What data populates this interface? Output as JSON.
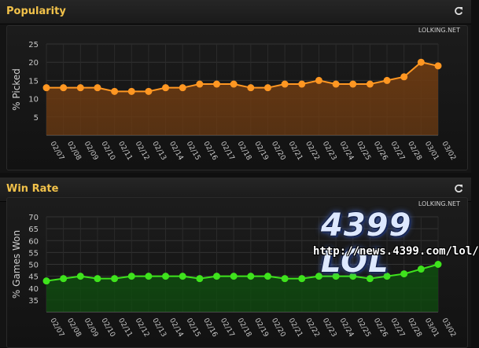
{
  "colors": {
    "title": "#f2c24a",
    "popularity_line": "#ff9722",
    "popularity_fill": "#6b3a12",
    "winrate_line": "#3fe31d",
    "winrate_fill": "#0f4a0f"
  },
  "panels": [
    {
      "title": "Popularity",
      "icon": "refresh-icon"
    },
    {
      "title": "Win Rate",
      "icon": "refresh-icon"
    }
  ],
  "watermark": {
    "logo": "4399 LOL",
    "url": "http://news.4399.com/lol/"
  },
  "chart_data": [
    {
      "type": "area",
      "title": "Popularity",
      "credit": "LOLKING.NET",
      "ylabel": "% Picked",
      "xlabel": "",
      "ylim": [
        0,
        25
      ],
      "yticks": [
        5,
        10,
        15,
        20,
        25
      ],
      "grid": true,
      "categories": [
        "02/07",
        "02/08",
        "02/09",
        "02/10",
        "02/11",
        "02/12",
        "02/13",
        "02/14",
        "02/15",
        "02/16",
        "02/17",
        "02/18",
        "02/19",
        "02/20",
        "02/21",
        "02/22",
        "02/23",
        "02/24",
        "02/25",
        "02/26",
        "02/27",
        "02/28",
        "03/01",
        "03/02"
      ],
      "series": [
        {
          "values": [
            13,
            13,
            13,
            13,
            12,
            12,
            12,
            13,
            13,
            14,
            14,
            14,
            13,
            13,
            14,
            14,
            15,
            14,
            14,
            14,
            15,
            16,
            20,
            19
          ]
        }
      ]
    },
    {
      "type": "area",
      "title": "Win Rate",
      "credit": "LOLKING.NET",
      "ylabel": "% Games Won",
      "xlabel": "",
      "ylim": [
        30,
        70
      ],
      "yticks": [
        35,
        40,
        45,
        50,
        55,
        60,
        65,
        70
      ],
      "grid": true,
      "categories": [
        "02/07",
        "02/08",
        "02/09",
        "02/10",
        "02/11",
        "02/12",
        "02/13",
        "02/14",
        "02/15",
        "02/16",
        "02/17",
        "02/18",
        "02/19",
        "02/20",
        "02/21",
        "02/22",
        "02/23",
        "02/24",
        "02/25",
        "02/26",
        "02/27",
        "02/28",
        "03/01",
        "03/02"
      ],
      "series": [
        {
          "values": [
            43,
            44,
            45,
            44,
            44,
            45,
            45,
            45,
            45,
            44,
            45,
            45,
            45,
            45,
            44,
            44,
            45,
            45,
            45,
            44,
            45,
            46,
            48,
            50
          ]
        }
      ]
    }
  ]
}
